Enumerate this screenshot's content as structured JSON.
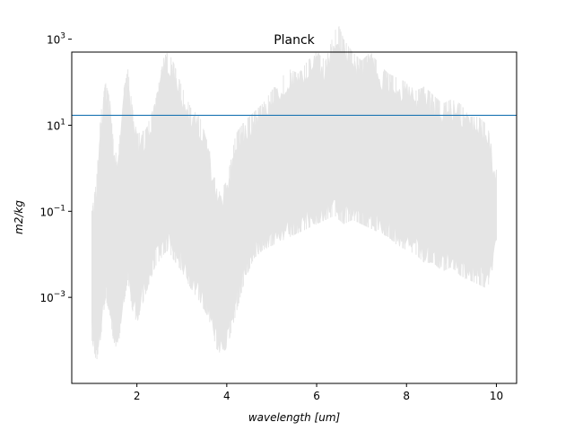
{
  "chart_data": {
    "type": "area",
    "title": "Planck",
    "xlabel": "wavelength [um]",
    "ylabel": "m2/kg",
    "xlim": [
      0.55,
      10.45
    ],
    "ylim_log10": [
      -5.0,
      2.7
    ],
    "y_scale": "log",
    "grid": false,
    "x_ticks": [
      2,
      4,
      6,
      8,
      10
    ],
    "x_tick_labels": [
      "2",
      "4",
      "6",
      "8",
      "10"
    ],
    "y_ticks_log10": [
      -3,
      -1,
      1,
      3
    ],
    "y_tick_labels": [
      "10−3",
      "10−1",
      "101",
      "103"
    ],
    "series": [
      {
        "role": "spectrum-envelope",
        "color": "#e5e5e5",
        "x": [
          1.0,
          1.1,
          1.2,
          1.3,
          1.4,
          1.5,
          1.6,
          1.7,
          1.8,
          1.9,
          2.0,
          2.2,
          2.4,
          2.6,
          2.7,
          2.8,
          3.0,
          3.2,
          3.4,
          3.6,
          3.8,
          4.0,
          4.2,
          4.4,
          4.6,
          4.8,
          5.0,
          5.2,
          5.4,
          5.6,
          5.8,
          6.0,
          6.2,
          6.4,
          6.5,
          6.6,
          6.8,
          7.0,
          7.2,
          7.4,
          7.6,
          7.8,
          8.0,
          8.2,
          8.4,
          8.6,
          8.8,
          9.0,
          9.2,
          9.4,
          9.6,
          9.8,
          10.0
        ],
        "y_upper_log10": [
          -1.0,
          -0.3,
          1.3,
          2.0,
          1.6,
          0.3,
          0.5,
          1.8,
          2.3,
          1.4,
          0.8,
          0.9,
          1.5,
          2.6,
          2.7,
          2.5,
          1.9,
          1.4,
          1.2,
          0.5,
          -0.6,
          -0.3,
          0.8,
          1.1,
          1.3,
          1.5,
          1.8,
          2.1,
          2.3,
          2.2,
          2.5,
          2.7,
          2.5,
          3.2,
          3.3,
          3.0,
          2.7,
          2.5,
          2.7,
          2.4,
          2.2,
          2.1,
          2.0,
          1.8,
          1.9,
          1.7,
          1.5,
          1.6,
          1.5,
          1.2,
          1.2,
          1.0,
          0.0
        ],
        "y_lower_log10": [
          -4.0,
          -4.5,
          -3.9,
          -3.0,
          -3.4,
          -4.2,
          -4.0,
          -3.2,
          -2.6,
          -3.3,
          -3.6,
          -2.9,
          -2.3,
          -2.0,
          -1.9,
          -2.1,
          -2.4,
          -2.8,
          -3.1,
          -3.5,
          -4.3,
          -4.2,
          -3.4,
          -2.6,
          -2.1,
          -1.9,
          -1.8,
          -1.7,
          -1.6,
          -1.5,
          -1.4,
          -1.3,
          -1.2,
          -1.1,
          -1.2,
          -1.3,
          -1.2,
          -1.3,
          -1.4,
          -1.5,
          -1.6,
          -1.8,
          -1.9,
          -2.0,
          -2.2,
          -2.2,
          -2.4,
          -2.3,
          -2.5,
          -2.6,
          -2.7,
          -2.8,
          -2.0
        ]
      },
      {
        "role": "planck-mean",
        "color": "#1f77b4",
        "x": [
          0.55,
          10.45
        ],
        "y": [
          17.0,
          17.0
        ]
      }
    ]
  }
}
